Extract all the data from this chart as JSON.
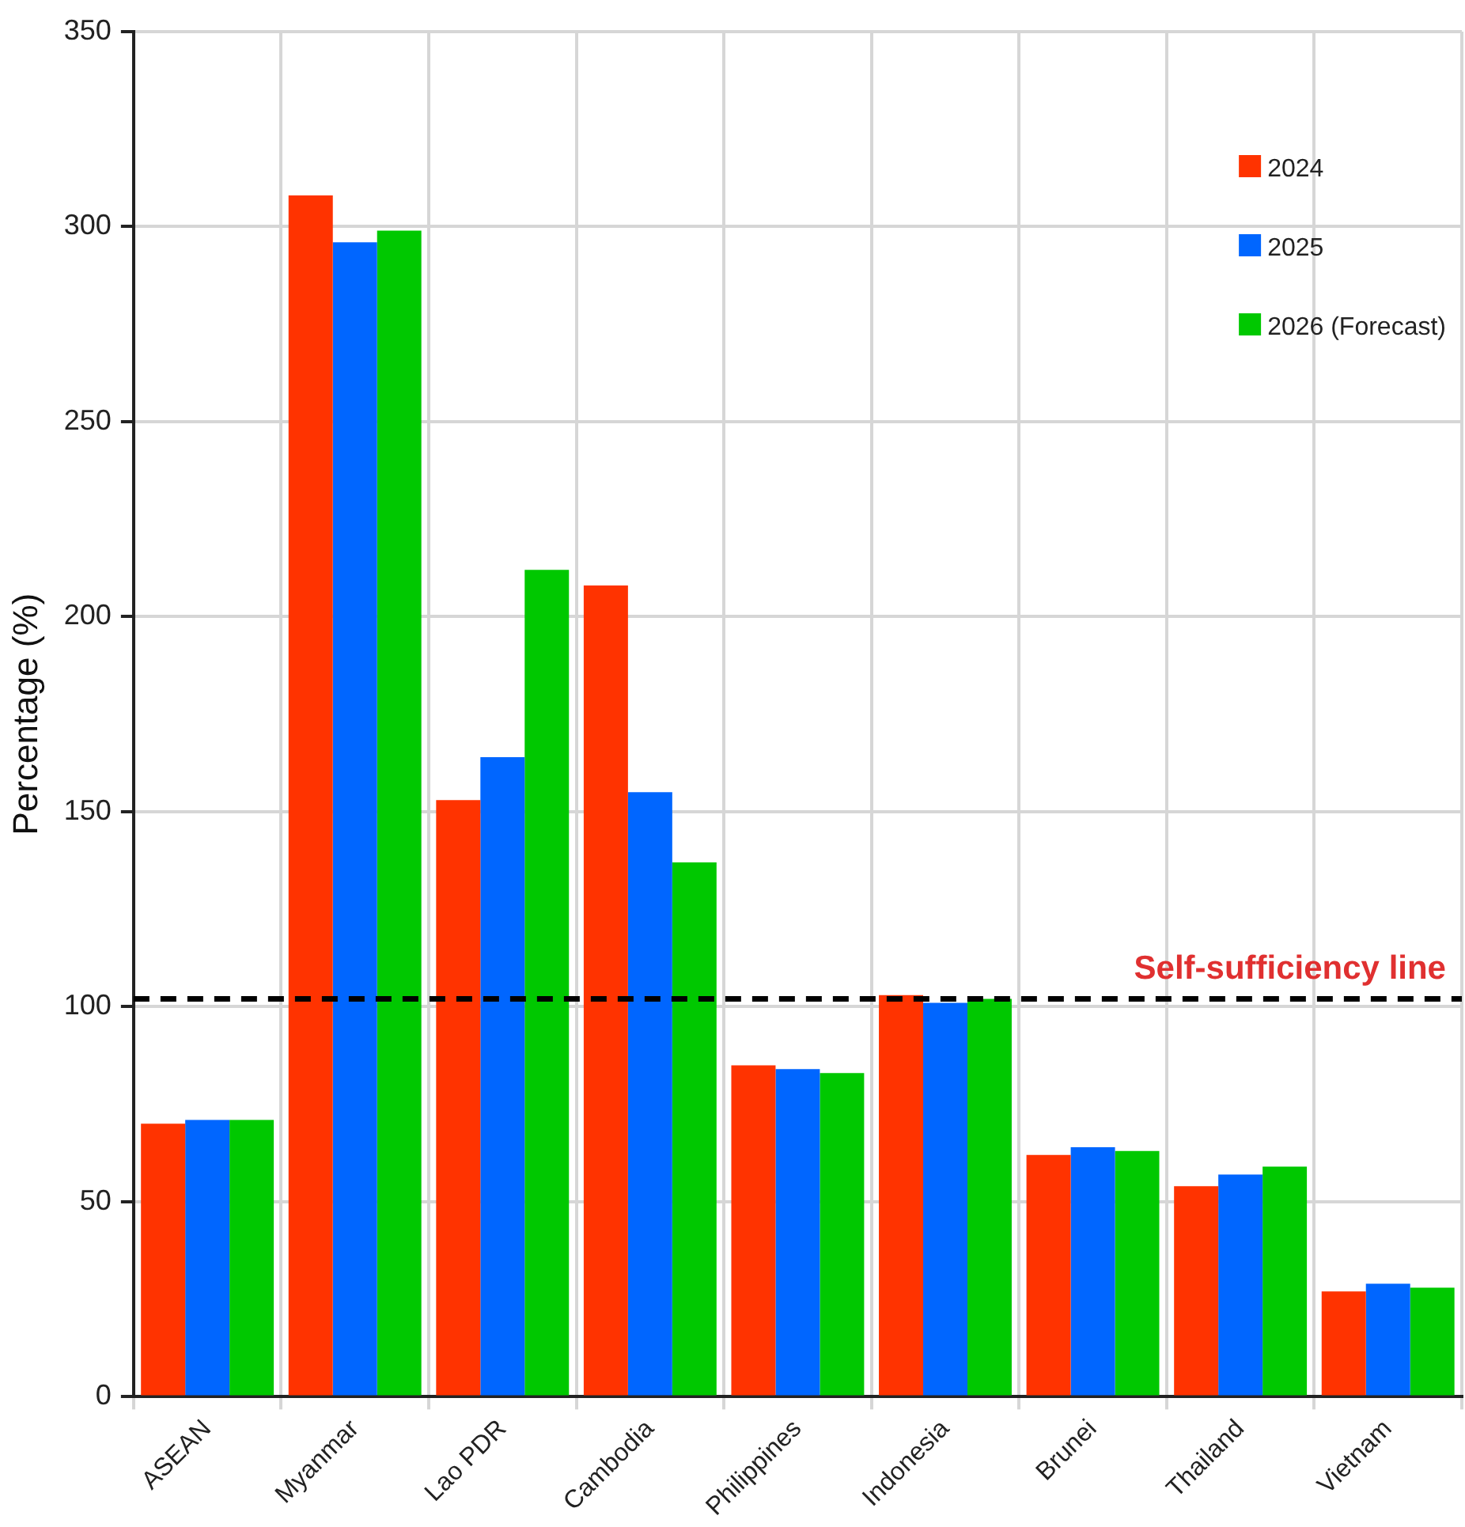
{
  "chart_data": {
    "type": "bar",
    "ylabel": "Percentage (%)",
    "categories": [
      "ASEAN",
      "Myanmar",
      "Lao PDR",
      "Cambodia",
      "Philippines",
      "Indonesia",
      "Brunei",
      "Thailand",
      "Vietnam"
    ],
    "series": [
      {
        "name": "2024",
        "color": "#ff3300",
        "values": [
          70,
          308,
          153,
          208,
          85,
          103,
          62,
          54,
          27
        ]
      },
      {
        "name": "2025",
        "color": "#0066ff",
        "values": [
          71,
          296,
          164,
          155,
          84,
          101,
          64,
          57,
          29
        ]
      },
      {
        "name": "2026 (Forecast)",
        "color": "#00c800",
        "values": [
          71,
          299,
          212,
          137,
          83,
          102,
          63,
          59,
          28
        ]
      }
    ],
    "ylim": [
      0,
      350
    ],
    "yticks": [
      0,
      50,
      100,
      150,
      200,
      250,
      300,
      350
    ],
    "grid": true,
    "legend": "top right",
    "ref_lines": [
      {
        "axis": "y",
        "value": 102,
        "label": "Self-sufficiency line",
        "color": "#000000",
        "line_style": "dashed"
      }
    ]
  }
}
